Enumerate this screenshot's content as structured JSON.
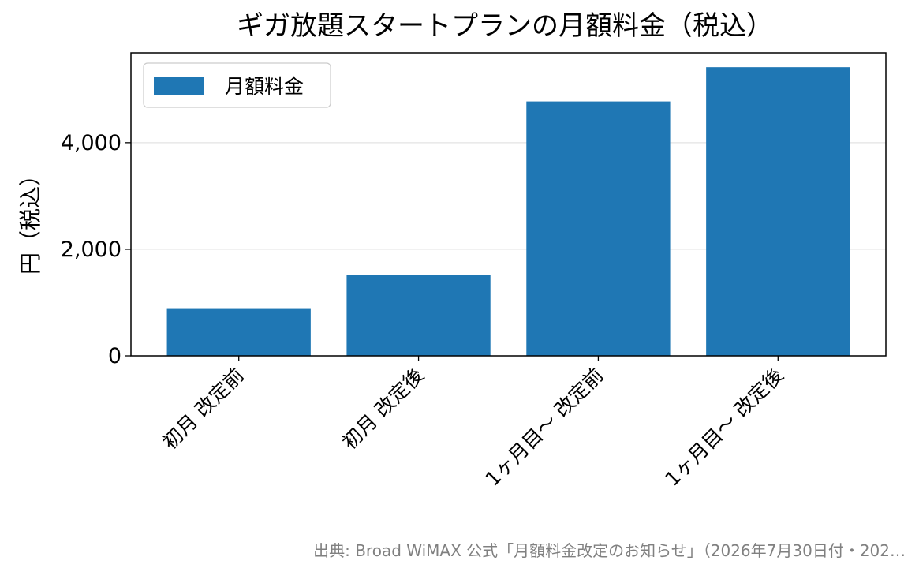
{
  "chart_data": {
    "type": "bar",
    "title": "ギガ放題スタートプランの月額料金（税込）",
    "xlabel": "",
    "ylabel": "円（税込）",
    "categories": [
      "初月 改定前",
      "初月 改定後",
      "1ヶ月目〜 改定前",
      "1ヶ月目〜 改定後"
    ],
    "series": [
      {
        "name": "月額料金",
        "values": [
          880,
          1518,
          4774,
          5417
        ]
      }
    ],
    "ylim": [
      0,
      5686
    ],
    "yticks": [
      0,
      2000,
      4000
    ],
    "ytick_labels": [
      "0",
      "2,000",
      "4,000"
    ],
    "grid": "horizontal",
    "legend_position": "top-left",
    "bar_color": "#1f77b4"
  },
  "footnote": "出典: Broad WiMAX 公式「月額料金改定のお知らせ」（2026年7月30日付・202…"
}
